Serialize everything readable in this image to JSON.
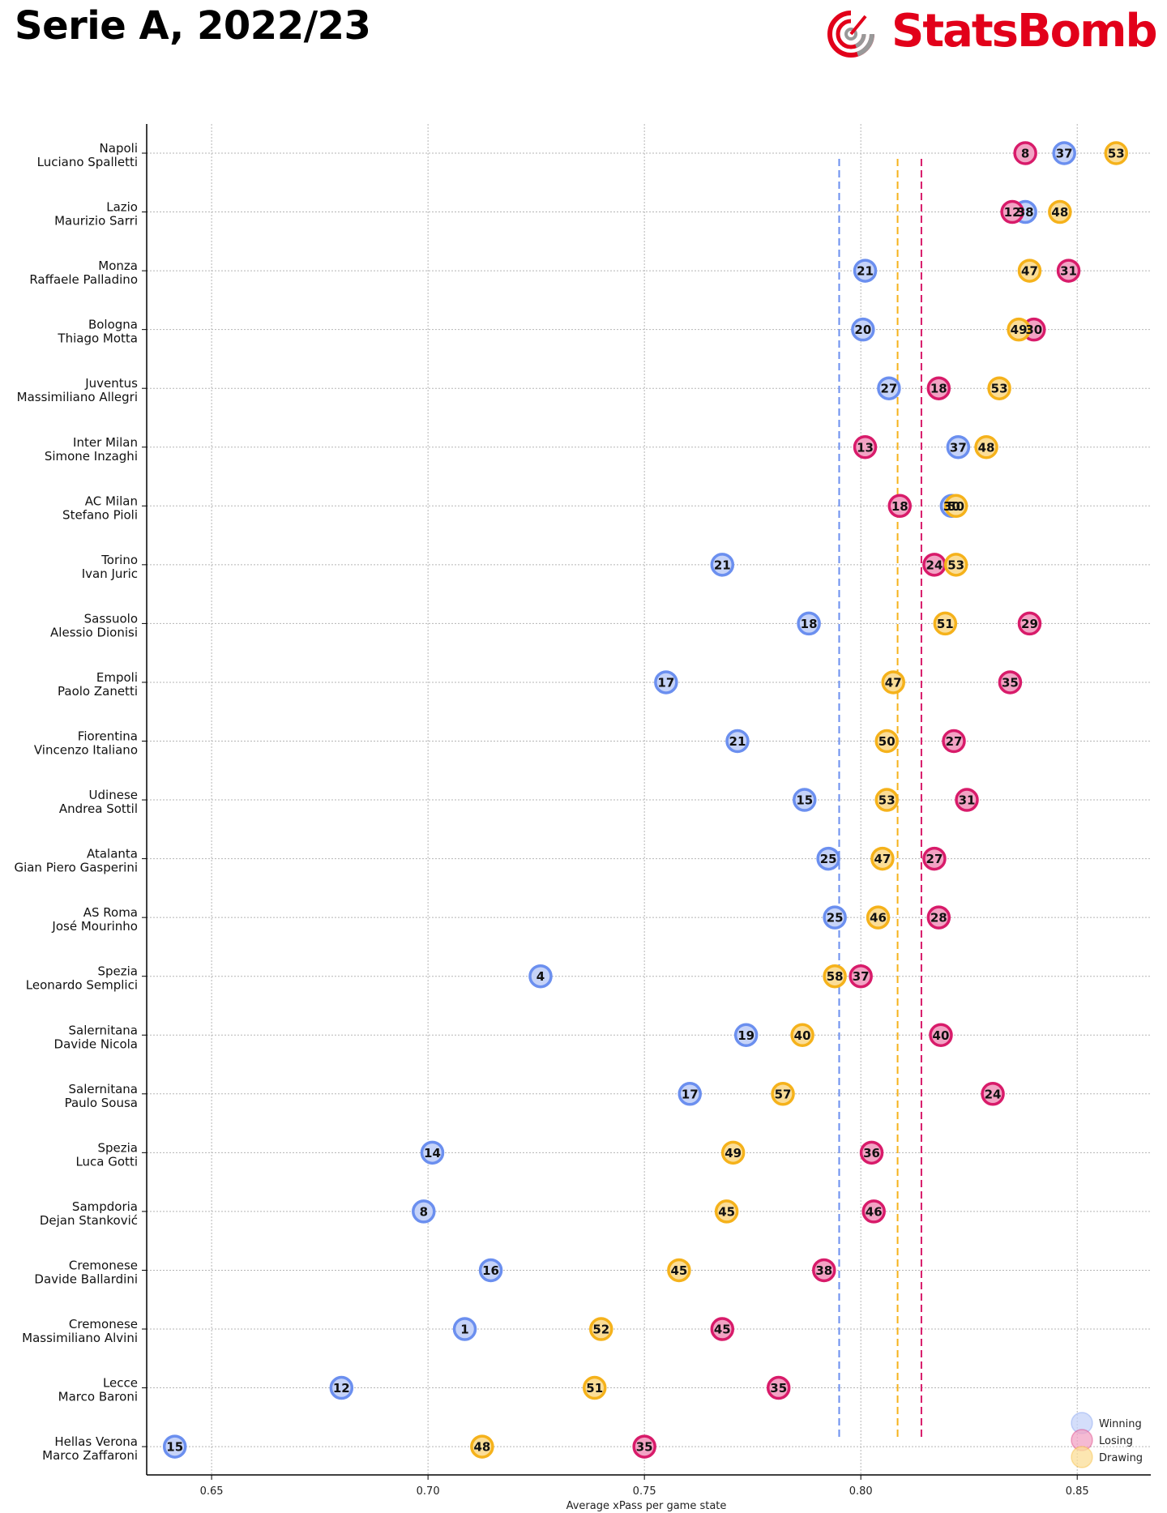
{
  "header": {
    "title": "Serie A, 2022/23"
  },
  "brand": {
    "name": "StatsBomb",
    "icon": "statsbomb-target-icon",
    "color": "#e2001a",
    "gray": "#999999"
  },
  "colors": {
    "winning": "#6b8fef",
    "winning_fill": "#c6d3f8",
    "losing": "#d81b6a",
    "losing_fill": "#f2a3c4",
    "drawing": "#f5b21b",
    "drawing_fill": "#fbdd97"
  },
  "chart_data": {
    "type": "scatter",
    "xlabel": "Average xPass per game state",
    "xlim": [
      0.635,
      0.867
    ],
    "xticks": [
      0.65,
      0.7,
      0.75,
      0.8,
      0.85
    ],
    "xtick_labels": [
      "0.65",
      "0.70",
      "0.75",
      "0.80",
      "0.85"
    ],
    "grid": true,
    "legend_position": "bottom-right",
    "series": [
      {
        "name": "Winning",
        "color": "#6b8fef"
      },
      {
        "name": "Losing",
        "color": "#d81b6a"
      },
      {
        "name": "Drawing",
        "color": "#f5b21b"
      }
    ],
    "reference_lines": [
      {
        "series": "Winning",
        "x": 0.795
      },
      {
        "series": "Drawing",
        "x": 0.8085
      },
      {
        "series": "Losing",
        "x": 0.814
      }
    ],
    "rows": [
      {
        "team": "Napoli",
        "manager": "Luciano Spalletti",
        "winning": [
          0.847,
          "37"
        ],
        "losing": [
          0.838,
          "8"
        ],
        "drawing": [
          0.859,
          "53"
        ]
      },
      {
        "team": "Lazio",
        "manager": "Maurizio Sarri",
        "winning": [
          0.838,
          "38"
        ],
        "losing": [
          0.835,
          "12"
        ],
        "drawing": [
          0.846,
          "48"
        ]
      },
      {
        "team": "Monza",
        "manager": "Raffaele Palladino",
        "winning": [
          0.801,
          "21"
        ],
        "losing": [
          0.848,
          "31"
        ],
        "drawing": [
          0.839,
          "47"
        ]
      },
      {
        "team": "Bologna",
        "manager": "Thiago Motta",
        "winning": [
          0.8005,
          "20"
        ],
        "losing": [
          0.84,
          "30"
        ],
        "drawing": [
          0.8365,
          "49"
        ]
      },
      {
        "team": "Juventus",
        "manager": "Massimiliano Allegri",
        "winning": [
          0.8065,
          "27"
        ],
        "losing": [
          0.818,
          "18"
        ],
        "drawing": [
          0.832,
          "53"
        ]
      },
      {
        "team": "Inter Milan",
        "manager": "Simone Inzaghi",
        "winning": [
          0.8225,
          "37"
        ],
        "losing": [
          0.801,
          "13"
        ],
        "drawing": [
          0.829,
          "48"
        ]
      },
      {
        "team": "AC Milan",
        "manager": "Stefano Pioli",
        "winning": [
          0.821,
          "30"
        ],
        "losing": [
          0.809,
          "18"
        ],
        "drawing": [
          0.822,
          "50"
        ]
      },
      {
        "team": "Torino",
        "manager": "Ivan Juric",
        "winning": [
          0.768,
          "21"
        ],
        "losing": [
          0.817,
          "24"
        ],
        "drawing": [
          0.822,
          "53"
        ]
      },
      {
        "team": "Sassuolo",
        "manager": "Alessio Dionisi",
        "winning": [
          0.788,
          "18"
        ],
        "losing": [
          0.839,
          "29"
        ],
        "drawing": [
          0.8195,
          "51"
        ]
      },
      {
        "team": "Empoli",
        "manager": "Paolo Zanetti",
        "winning": [
          0.755,
          "17"
        ],
        "losing": [
          0.8345,
          "35"
        ],
        "drawing": [
          0.8075,
          "47"
        ]
      },
      {
        "team": "Fiorentina",
        "manager": "Vincenzo Italiano",
        "winning": [
          0.7715,
          "21"
        ],
        "losing": [
          0.8215,
          "27"
        ],
        "drawing": [
          0.806,
          "50"
        ]
      },
      {
        "team": "Udinese",
        "manager": "Andrea Sottil",
        "winning": [
          0.787,
          "15"
        ],
        "losing": [
          0.8245,
          "31"
        ],
        "drawing": [
          0.806,
          "53"
        ]
      },
      {
        "team": "Atalanta",
        "manager": "Gian Piero Gasperini",
        "winning": [
          0.7925,
          "25"
        ],
        "losing": [
          0.817,
          "27"
        ],
        "drawing": [
          0.805,
          "47"
        ]
      },
      {
        "team": "AS Roma",
        "manager": "José Mourinho",
        "winning": [
          0.794,
          "25"
        ],
        "losing": [
          0.818,
          "28"
        ],
        "drawing": [
          0.804,
          "46"
        ]
      },
      {
        "team": "Spezia",
        "manager": "Leonardo Semplici",
        "winning": [
          0.726,
          "4"
        ],
        "losing": [
          0.8,
          "37"
        ],
        "drawing": [
          0.794,
          "58"
        ]
      },
      {
        "team": "Salernitana",
        "manager": "Davide Nicola",
        "winning": [
          0.7735,
          "19"
        ],
        "losing": [
          0.8185,
          "40"
        ],
        "drawing": [
          0.7865,
          "40"
        ]
      },
      {
        "team": "Salernitana",
        "manager": "Paulo Sousa",
        "winning": [
          0.7605,
          "17"
        ],
        "losing": [
          0.8305,
          "24"
        ],
        "drawing": [
          0.782,
          "57"
        ]
      },
      {
        "team": "Spezia",
        "manager": "Luca Gotti",
        "winning": [
          0.701,
          "14"
        ],
        "losing": [
          0.8025,
          "36"
        ],
        "drawing": [
          0.7705,
          "49"
        ]
      },
      {
        "team": "Sampdoria",
        "manager": "Dejan Stanković",
        "winning": [
          0.699,
          "8"
        ],
        "losing": [
          0.803,
          "46"
        ],
        "drawing": [
          0.769,
          "45"
        ]
      },
      {
        "team": "Cremonese",
        "manager": "Davide Ballardini",
        "winning": [
          0.7145,
          "16"
        ],
        "losing": [
          0.7915,
          "38"
        ],
        "drawing": [
          0.758,
          "45"
        ]
      },
      {
        "team": "Cremonese",
        "manager": "Massimiliano Alvini",
        "winning": [
          0.7085,
          "1"
        ],
        "losing": [
          0.768,
          "45"
        ],
        "drawing": [
          0.74,
          "52"
        ]
      },
      {
        "team": "Lecce",
        "manager": "Marco Baroni",
        "winning": [
          0.68,
          "12"
        ],
        "losing": [
          0.781,
          "35"
        ],
        "drawing": [
          0.7385,
          "51"
        ]
      },
      {
        "team": "Hellas Verona",
        "manager": "Marco Zaffaroni",
        "winning": [
          0.6415,
          "15"
        ],
        "losing": [
          0.75,
          "35"
        ],
        "drawing": [
          0.7125,
          "48"
        ]
      }
    ]
  }
}
